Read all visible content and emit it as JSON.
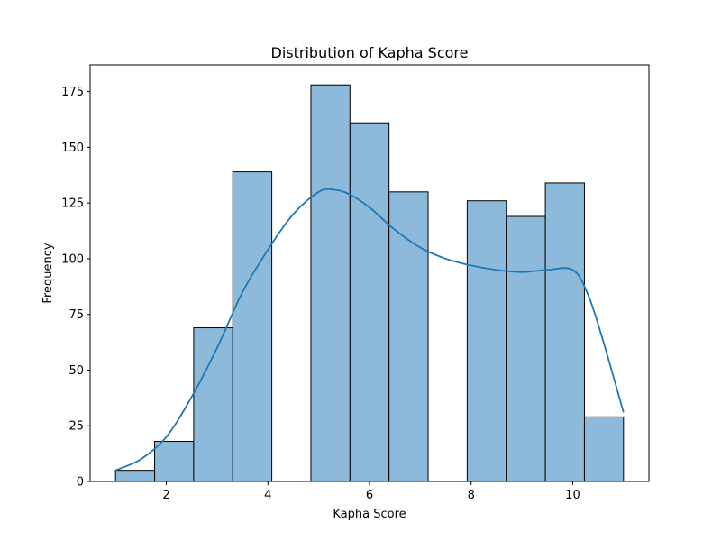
{
  "chart_data": {
    "type": "bar",
    "title": "Distribution of Kapha Score",
    "xlabel": "Kapha Score",
    "ylabel": "Frequency",
    "xlim": [
      0.5,
      11.5
    ],
    "ylim": [
      0,
      187
    ],
    "xticks": [
      2,
      4,
      6,
      8,
      10
    ],
    "yticks": [
      0,
      25,
      50,
      75,
      100,
      125,
      150,
      175
    ],
    "bin_edges": [
      1.0,
      1.7692,
      2.5385,
      3.3077,
      4.0769,
      4.8462,
      5.6154,
      6.3846,
      7.1538,
      7.9231,
      8.6923,
      9.4615,
      10.2308,
      11.0
    ],
    "values": [
      5,
      18,
      69,
      139,
      0,
      178,
      161,
      130,
      0,
      126,
      119,
      134,
      29
    ],
    "kde": {
      "x": [
        1.0,
        1.5,
        2.0,
        2.5,
        3.0,
        3.5,
        4.0,
        4.5,
        5.0,
        5.3,
        5.6,
        6.0,
        6.5,
        7.0,
        7.5,
        8.0,
        8.5,
        9.0,
        9.5,
        10.0,
        10.3,
        10.6,
        11.0
      ],
      "y": [
        5,
        10,
        20,
        38,
        60,
        85,
        104,
        120,
        130,
        131,
        129,
        123,
        113,
        105,
        100,
        97,
        95,
        94,
        95,
        95,
        84,
        63,
        31
      ]
    },
    "grid": false,
    "colors": {
      "bar_fill": "#8db9db",
      "bar_edge": "#000000",
      "kde_line": "#1f77b4"
    }
  }
}
